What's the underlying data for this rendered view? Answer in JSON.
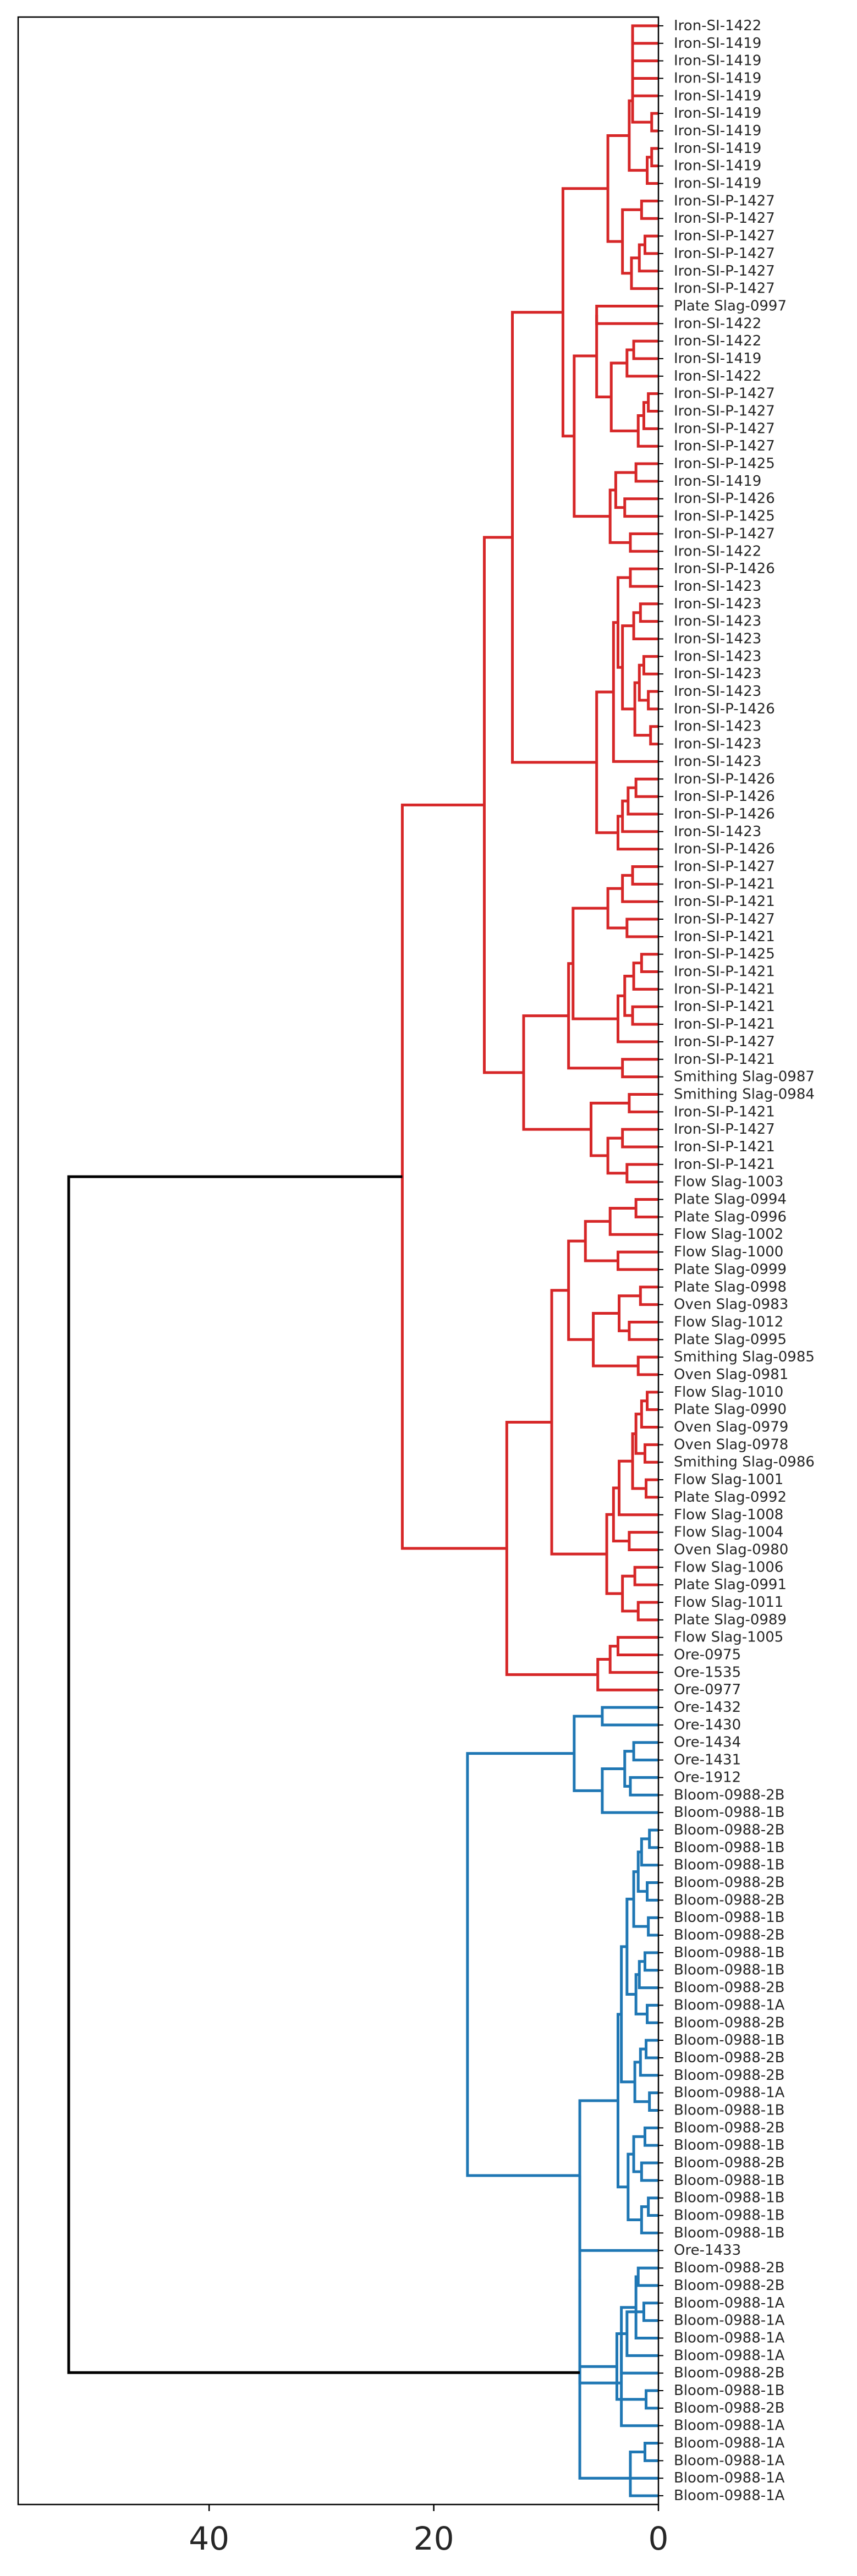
{
  "chart_data": {
    "type": "dendrogram",
    "orientation": "left",
    "xlim": [
      57,
      0
    ],
    "x_ticks": [
      "40",
      "20",
      "0"
    ],
    "x_tick_values": [
      40,
      20,
      0
    ],
    "colors": {
      "cluster_a": "#d62728",
      "cluster_b": "#1f77b4",
      "root": "#000000"
    },
    "leaves": [
      "Iron-SI-1422",
      "Iron-SI-1419",
      "Iron-SI-1419",
      "Iron-SI-1419",
      "Iron-SI-1419",
      "Iron-SI-1419",
      "Iron-SI-1419",
      "Iron-SI-1419",
      "Iron-SI-1419",
      "Iron-SI-1419",
      "Iron-SI-P-1427",
      "Iron-SI-P-1427",
      "Iron-SI-P-1427",
      "Iron-SI-P-1427",
      "Iron-SI-P-1427",
      "Iron-SI-P-1427",
      "Plate Slag-0997",
      "Iron-SI-1422",
      "Iron-SI-1422",
      "Iron-SI-1419",
      "Iron-SI-1422",
      "Iron-SI-P-1427",
      "Iron-SI-P-1427",
      "Iron-SI-P-1427",
      "Iron-SI-P-1427",
      "Iron-SI-P-1425",
      "Iron-SI-1419",
      "Iron-SI-P-1426",
      "Iron-SI-P-1425",
      "Iron-SI-P-1427",
      "Iron-SI-1422",
      "Iron-SI-P-1426",
      "Iron-SI-1423",
      "Iron-SI-1423",
      "Iron-SI-1423",
      "Iron-SI-1423",
      "Iron-SI-1423",
      "Iron-SI-1423",
      "Iron-SI-1423",
      "Iron-SI-P-1426",
      "Iron-SI-1423",
      "Iron-SI-1423",
      "Iron-SI-1423",
      "Iron-SI-P-1426",
      "Iron-SI-P-1426",
      "Iron-SI-P-1426",
      "Iron-SI-1423",
      "Iron-SI-P-1426",
      "Iron-SI-P-1427",
      "Iron-SI-P-1421",
      "Iron-SI-P-1421",
      "Iron-SI-P-1427",
      "Iron-SI-P-1421",
      "Iron-SI-P-1425",
      "Iron-SI-P-1421",
      "Iron-SI-P-1421",
      "Iron-SI-P-1421",
      "Iron-SI-P-1421",
      "Iron-SI-P-1427",
      "Iron-SI-P-1421",
      "Smithing Slag-0987",
      "Smithing Slag-0984",
      "Iron-SI-P-1421",
      "Iron-SI-P-1427",
      "Iron-SI-P-1421",
      "Iron-SI-P-1421",
      "Flow Slag-1003",
      "Plate Slag-0994",
      "Plate Slag-0996",
      "Flow Slag-1002",
      "Flow Slag-1000",
      "Plate Slag-0999",
      "Plate Slag-0998",
      "Oven Slag-0983",
      "Flow Slag-1012",
      "Plate Slag-0995",
      "Smithing Slag-0985",
      "Oven Slag-0981",
      "Flow Slag-1010",
      "Plate Slag-0990",
      "Oven Slag-0979",
      "Oven Slag-0978",
      "Smithing Slag-0986",
      "Flow Slag-1001",
      "Plate Slag-0992",
      "Flow Slag-1008",
      "Flow Slag-1004",
      "Oven Slag-0980",
      "Flow Slag-1006",
      "Plate Slag-0991",
      "Flow Slag-1011",
      "Plate Slag-0989",
      "Flow Slag-1005",
      "Ore-0975",
      "Ore-1535",
      "Ore-0977",
      "Ore-1432",
      "Ore-1430",
      "Ore-1434",
      "Ore-1431",
      "Ore-1912",
      "Bloom-0988-2B",
      "Bloom-0988-1B",
      "Bloom-0988-2B",
      "Bloom-0988-1B",
      "Bloom-0988-1B",
      "Bloom-0988-2B",
      "Bloom-0988-2B",
      "Bloom-0988-1B",
      "Bloom-0988-2B",
      "Bloom-0988-1B",
      "Bloom-0988-1B",
      "Bloom-0988-2B",
      "Bloom-0988-1A",
      "Bloom-0988-2B",
      "Bloom-0988-1B",
      "Bloom-0988-2B",
      "Bloom-0988-2B",
      "Bloom-0988-1A",
      "Bloom-0988-1B",
      "Bloom-0988-2B",
      "Bloom-0988-1B",
      "Bloom-0988-2B",
      "Bloom-0988-1B",
      "Bloom-0988-1B",
      "Bloom-0988-1B",
      "Bloom-0988-1B",
      "Ore-1433",
      "Bloom-0988-2B",
      "Bloom-0988-2B",
      "Bloom-0988-1A",
      "Bloom-0988-1A",
      "Bloom-0988-1A",
      "Bloom-0988-1A",
      "Bloom-0988-2B",
      "Bloom-0988-1B",
      "Bloom-0988-2B",
      "Bloom-0988-1A",
      "Bloom-0988-1A",
      "Bloom-0988-1A",
      "Bloom-0988-1A",
      "Bloom-0988-1A"
    ],
    "links": [
      {
        "a": 0,
        "b": 1,
        "h": 2.3,
        "c": "cluster_a"
      },
      {
        "a": "L0",
        "b": 2,
        "h": 2.0,
        "c": "cluster_a"
      },
      {
        "a": "L1",
        "b": 3,
        "h": 1.7,
        "c": "cluster_a"
      },
      {
        "a": "L2",
        "b": 4,
        "h": 1.4,
        "c": "cluster_a"
      },
      {
        "a": 5,
        "b": 6,
        "h": 0.6,
        "c": "cluster_a"
      },
      {
        "a": "L3",
        "b": "L4",
        "h": 1.9,
        "c": "cluster_a"
      },
      {
        "a": 7,
        "b": 8,
        "h": 0.6,
        "c": "cluster_a"
      },
      {
        "a": "L6",
        "b": 9,
        "h": 1.0,
        "c": "cluster_a"
      },
      {
        "a": "L5",
        "b": "L7",
        "h": 2.6,
        "c": "cluster_a"
      },
      {
        "a": 10,
        "b": 11,
        "h": 1.5,
        "c": "cluster_a"
      },
      {
        "a": 12,
        "b": 13,
        "h": 1.2,
        "c": "cluster_a"
      },
      {
        "a": "L10",
        "b": 14,
        "h": 1.7,
        "c": "cluster_a"
      },
      {
        "a": "L11",
        "b": 15,
        "h": 2.4,
        "c": "cluster_a"
      },
      {
        "a": "L9",
        "b": "L12",
        "h": 3.2,
        "c": "cluster_a"
      },
      {
        "a": "L8",
        "b": "L13",
        "h": 4.5,
        "c": "cluster_a"
      },
      {
        "a": 16,
        "b": 17,
        "h": 5.5,
        "c": "cluster_a"
      },
      {
        "a": 18,
        "b": 19,
        "h": 2.2,
        "c": "cluster_a"
      },
      {
        "a": "L16",
        "b": 20,
        "h": 2.8,
        "c": "cluster_a"
      },
      {
        "a": 21,
        "b": 22,
        "h": 0.9,
        "c": "cluster_a"
      },
      {
        "a": "L18",
        "b": 23,
        "h": 1.3,
        "c": "cluster_a"
      },
      {
        "a": "L19",
        "b": 24,
        "h": 1.8,
        "c": "cluster_a"
      },
      {
        "a": "L17",
        "b": "L20",
        "h": 4.2,
        "c": "cluster_a"
      },
      {
        "a": "L15",
        "b": "L21",
        "h": 5.0,
        "c": "cluster_a"
      },
      {
        "a": 25,
        "b": 26,
        "h": 2.0,
        "c": "cluster_a"
      },
      {
        "a": 27,
        "b": 28,
        "h": 3.0,
        "c": "cluster_a"
      },
      {
        "a": "L23",
        "b": "L24",
        "h": 3.8,
        "c": "cluster_a"
      },
      {
        "a": 29,
        "b": 30,
        "h": 2.5,
        "c": "cluster_a"
      },
      {
        "a": "L25",
        "b": "L26",
        "h": 4.3,
        "c": "cluster_a"
      },
      {
        "a": "L22",
        "b": "L27",
        "h": 7.5,
        "c": "cluster_a"
      },
      {
        "a": "L14",
        "b": "L28",
        "h": 8.5,
        "c": "cluster_a"
      },
      {
        "a": 31,
        "b": 32,
        "h": 2.5,
        "c": "cluster_a"
      },
      {
        "a": 33,
        "b": 34,
        "h": 1.6,
        "c": "cluster_a"
      },
      {
        "a": "L31",
        "b": 35,
        "h": 2.2,
        "c": "cluster_a"
      },
      {
        "a": 36,
        "b": 37,
        "h": 1.3,
        "c": "cluster_a"
      },
      {
        "a": 38,
        "b": 39,
        "h": 0.9,
        "c": "cluster_a"
      },
      {
        "a": "L33",
        "b": "L34",
        "h": 1.7,
        "c": "cluster_a"
      },
      {
        "a": 40,
        "b": 41,
        "h": 0.7,
        "c": "cluster_a"
      },
      {
        "a": "L35",
        "b": "L36",
        "h": 2.1,
        "c": "cluster_a"
      },
      {
        "a": "L32",
        "b": "L37",
        "h": 3.2,
        "c": "cluster_a"
      },
      {
        "a": "L30",
        "b": "L38",
        "h": 3.6,
        "c": "cluster_a"
      },
      {
        "a": "L39",
        "b": 42,
        "h": 4.0,
        "c": "cluster_a"
      },
      {
        "a": 43,
        "b": 44,
        "h": 2.0,
        "c": "cluster_a"
      },
      {
        "a": "L41",
        "b": 45,
        "h": 2.7,
        "c": "cluster_a"
      },
      {
        "a": "L42",
        "b": 46,
        "h": 3.2,
        "c": "cluster_a"
      },
      {
        "a": "L43",
        "b": 47,
        "h": 3.6,
        "c": "cluster_a"
      },
      {
        "a": "L40",
        "b": "L44",
        "h": 5.5,
        "c": "cluster_a"
      },
      {
        "a": "L29",
        "b": "L45",
        "h": 13.0,
        "c": "cluster_a"
      },
      {
        "a": 48,
        "b": 49,
        "h": 2.3,
        "c": "cluster_a"
      },
      {
        "a": "L47",
        "b": 50,
        "h": 3.2,
        "c": "cluster_a"
      },
      {
        "a": 51,
        "b": 52,
        "h": 2.8,
        "c": "cluster_a"
      },
      {
        "a": "L48",
        "b": "L49",
        "h": 4.5,
        "c": "cluster_a"
      },
      {
        "a": 53,
        "b": 54,
        "h": 1.5,
        "c": "cluster_a"
      },
      {
        "a": "L51",
        "b": 55,
        "h": 2.2,
        "c": "cluster_a"
      },
      {
        "a": 56,
        "b": 57,
        "h": 2.3,
        "c": "cluster_a"
      },
      {
        "a": "L52",
        "b": "L53",
        "h": 3.0,
        "c": "cluster_a"
      },
      {
        "a": "L54",
        "b": 58,
        "h": 3.6,
        "c": "cluster_a"
      },
      {
        "a": "L50",
        "b": "L55",
        "h": 7.6,
        "c": "cluster_a"
      },
      {
        "a": 59,
        "b": 60,
        "h": 3.2,
        "c": "cluster_a"
      },
      {
        "a": "L56",
        "b": "L57",
        "h": 8.0,
        "c": "cluster_a"
      },
      {
        "a": 61,
        "b": 62,
        "h": 2.6,
        "c": "cluster_a"
      },
      {
        "a": 63,
        "b": 64,
        "h": 3.2,
        "c": "cluster_a"
      },
      {
        "a": 65,
        "b": 66,
        "h": 2.8,
        "c": "cluster_a"
      },
      {
        "a": "L60",
        "b": "L61",
        "h": 4.5,
        "c": "cluster_a"
      },
      {
        "a": "L59",
        "b": "L62",
        "h": 6.0,
        "c": "cluster_a"
      },
      {
        "a": "L58",
        "b": "L63",
        "h": 12.0,
        "c": "cluster_a"
      },
      {
        "a": "L46",
        "b": "L64",
        "h": 15.5,
        "c": "cluster_a"
      },
      {
        "a": 67,
        "b": 68,
        "h": 2.0,
        "c": "cluster_a"
      },
      {
        "a": "L66",
        "b": 69,
        "h": 4.3,
        "c": "cluster_a"
      },
      {
        "a": 70,
        "b": 71,
        "h": 3.6,
        "c": "cluster_a"
      },
      {
        "a": "L67",
        "b": "L68",
        "h": 6.5,
        "c": "cluster_a"
      },
      {
        "a": 72,
        "b": 73,
        "h": 1.6,
        "c": "cluster_a"
      },
      {
        "a": 74,
        "b": 75,
        "h": 2.6,
        "c": "cluster_a"
      },
      {
        "a": "L70",
        "b": "L71",
        "h": 3.5,
        "c": "cluster_a"
      },
      {
        "a": 76,
        "b": 77,
        "h": 1.8,
        "c": "cluster_a"
      },
      {
        "a": "L72",
        "b": "L73",
        "h": 5.8,
        "c": "cluster_a"
      },
      {
        "a": "L69",
        "b": "L74",
        "h": 8.0,
        "c": "cluster_a"
      },
      {
        "a": 78,
        "b": 79,
        "h": 1.0,
        "c": "cluster_a"
      },
      {
        "a": "L76",
        "b": 80,
        "h": 1.5,
        "c": "cluster_a"
      },
      {
        "a": 81,
        "b": 82,
        "h": 1.2,
        "c": "cluster_a"
      },
      {
        "a": "L77",
        "b": "L78",
        "h": 2.0,
        "c": "cluster_a"
      },
      {
        "a": 83,
        "b": 84,
        "h": 1.1,
        "c": "cluster_a"
      },
      {
        "a": "L79",
        "b": "L80",
        "h": 2.3,
        "c": "cluster_a"
      },
      {
        "a": "L81",
        "b": 85,
        "h": 3.5,
        "c": "cluster_a"
      },
      {
        "a": 86,
        "b": 87,
        "h": 2.6,
        "c": "cluster_a"
      },
      {
        "a": "L82",
        "b": "L83",
        "h": 4.0,
        "c": "cluster_a"
      },
      {
        "a": 88,
        "b": 89,
        "h": 2.1,
        "c": "cluster_a"
      },
      {
        "a": 90,
        "b": 91,
        "h": 1.8,
        "c": "cluster_a"
      },
      {
        "a": "L85",
        "b": "L86",
        "h": 3.2,
        "c": "cluster_a"
      },
      {
        "a": "L84",
        "b": "L87",
        "h": 4.6,
        "c": "cluster_a"
      },
      {
        "a": "L75",
        "b": "L88",
        "h": 9.5,
        "c": "cluster_a"
      },
      {
        "a": 92,
        "b": 93,
        "h": 3.6,
        "c": "cluster_a"
      },
      {
        "a": "L90",
        "b": 94,
        "h": 4.3,
        "c": "cluster_a"
      },
      {
        "a": "L91",
        "b": 95,
        "h": 5.4,
        "c": "cluster_a"
      },
      {
        "a": "L89",
        "b": "L92",
        "h": 13.5,
        "c": "cluster_a"
      },
      {
        "a": "L65",
        "b": "L93",
        "h": 22.8,
        "c": "cluster_a"
      },
      {
        "a": 96,
        "b": 97,
        "h": 5.0,
        "c": "cluster_b"
      },
      {
        "a": 98,
        "b": 99,
        "h": 2.2,
        "c": "cluster_b"
      },
      {
        "a": 100,
        "b": 101,
        "h": 2.5,
        "c": "cluster_b"
      },
      {
        "a": "L96",
        "b": "L97",
        "h": 3.0,
        "c": "cluster_b"
      },
      {
        "a": "L98",
        "b": 102,
        "h": 5.0,
        "c": "cluster_b"
      },
      {
        "a": "L95",
        "b": "L99",
        "h": 7.5,
        "c": "cluster_b"
      },
      {
        "a": 103,
        "b": 104,
        "h": 0.8,
        "c": "cluster_b"
      },
      {
        "a": "L101",
        "b": 105,
        "h": 1.5,
        "c": "cluster_b"
      },
      {
        "a": 106,
        "b": 107,
        "h": 1.0,
        "c": "cluster_b"
      },
      {
        "a": "L102",
        "b": "L103",
        "h": 1.8,
        "c": "cluster_b"
      },
      {
        "a": 108,
        "b": 109,
        "h": 0.9,
        "c": "cluster_b"
      },
      {
        "a": "L104",
        "b": "L105",
        "h": 2.2,
        "c": "cluster_b"
      },
      {
        "a": 110,
        "b": 111,
        "h": 1.2,
        "c": "cluster_b"
      },
      {
        "a": "L107",
        "b": 112,
        "h": 1.7,
        "c": "cluster_b"
      },
      {
        "a": 113,
        "b": 114,
        "h": 1.0,
        "c": "cluster_b"
      },
      {
        "a": "L108",
        "b": "L109",
        "h": 2.0,
        "c": "cluster_b"
      },
      {
        "a": "L106",
        "b": "L110",
        "h": 2.8,
        "c": "cluster_b"
      },
      {
        "a": 115,
        "b": 116,
        "h": 1.1,
        "c": "cluster_b"
      },
      {
        "a": "L112",
        "b": 117,
        "h": 1.6,
        "c": "cluster_b"
      },
      {
        "a": 118,
        "b": 119,
        "h": 0.8,
        "c": "cluster_b"
      },
      {
        "a": "L113",
        "b": "L114",
        "h": 2.1,
        "c": "cluster_b"
      },
      {
        "a": "L111",
        "b": "L115",
        "h": 3.3,
        "c": "cluster_b"
      },
      {
        "a": 120,
        "b": 121,
        "h": 1.2,
        "c": "cluster_b"
      },
      {
        "a": 122,
        "b": 123,
        "h": 1.5,
        "c": "cluster_b"
      },
      {
        "a": "L117",
        "b": "L118",
        "h": 2.2,
        "c": "cluster_b"
      },
      {
        "a": 124,
        "b": 125,
        "h": 0.9,
        "c": "cluster_b"
      },
      {
        "a": "L120",
        "b": 126,
        "h": 1.5,
        "c": "cluster_b"
      },
      {
        "a": "L119",
        "b": "L121",
        "h": 2.7,
        "c": "cluster_b"
      },
      {
        "a": "L116",
        "b": "L122",
        "h": 3.6,
        "c": "cluster_b"
      },
      {
        "a": "L123",
        "b": 127,
        "h": 7.0,
        "c": "cluster_b"
      },
      {
        "a": 128,
        "b": 129,
        "h": 1.8,
        "c": "cluster_b"
      },
      {
        "a": 130,
        "b": 131,
        "h": 1.3,
        "c": "cluster_b"
      },
      {
        "a": "L125",
        "b": 132,
        "h": 2.0,
        "c": "cluster_b"
      },
      {
        "a": "L126",
        "b": 133,
        "h": 2.8,
        "c": "cluster_b"
      },
      {
        "a": "L127",
        "b": 134,
        "h": 3.3,
        "c": "cluster_b"
      },
      {
        "a": 135,
        "b": 136,
        "h": 1.1,
        "c": "cluster_b"
      },
      {
        "a": "L129",
        "b": 137,
        "h": 1.7,
        "c": "cluster_b"
      },
      {
        "a": "L128",
        "b": "L130",
        "h": 3.7,
        "c": "cluster_b"
      },
      {
        "a": "L124",
        "b": "L131",
        "h": 5.0,
        "c": "cluster_b"
      },
      {
        "a": 138,
        "b": 139,
        "h": 1.2,
        "c": "cluster_b"
      },
      {
        "a": "L133",
        "b": 140,
        "h": 1.8,
        "c": "cluster_b"
      },
      {
        "a": "L134",
        "b": 141,
        "h": 2.5,
        "c": "cluster_b"
      },
      {
        "a": "L135",
        "b": "L124",
        "h": 0,
        "c": "cluster_b",
        "skip": true
      },
      {
        "a": "L132",
        "b": "L135",
        "h": 6.8,
        "c": "cluster_b"
      },
      {
        "a": "L100",
        "b": "L137",
        "h": 17.0,
        "c": "cluster_b"
      },
      {
        "a": "L94",
        "b": "L138",
        "h": 52.5,
        "c": "root"
      }
    ]
  }
}
